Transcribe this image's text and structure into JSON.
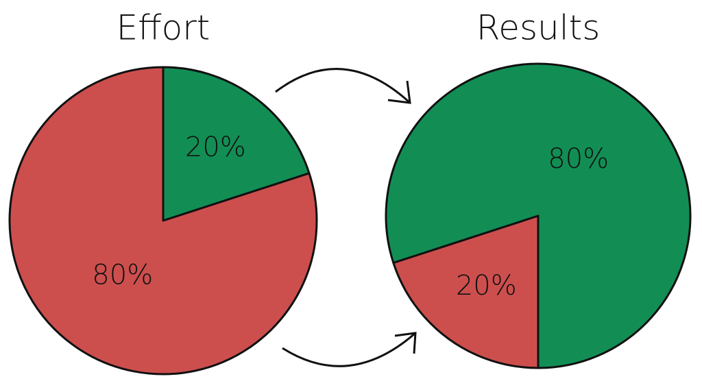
{
  "chart_data": [
    {
      "type": "pie",
      "title": "Effort",
      "values": [
        20,
        80
      ],
      "value_labels": [
        "20%",
        "80%"
      ],
      "colors": [
        "#128e55",
        "#cc4f4e"
      ]
    },
    {
      "type": "pie",
      "title": "Results",
      "values": [
        80,
        20
      ],
      "value_labels": [
        "80%",
        "20%"
      ],
      "colors": [
        "#128e55",
        "#cc4f4e"
      ]
    }
  ]
}
